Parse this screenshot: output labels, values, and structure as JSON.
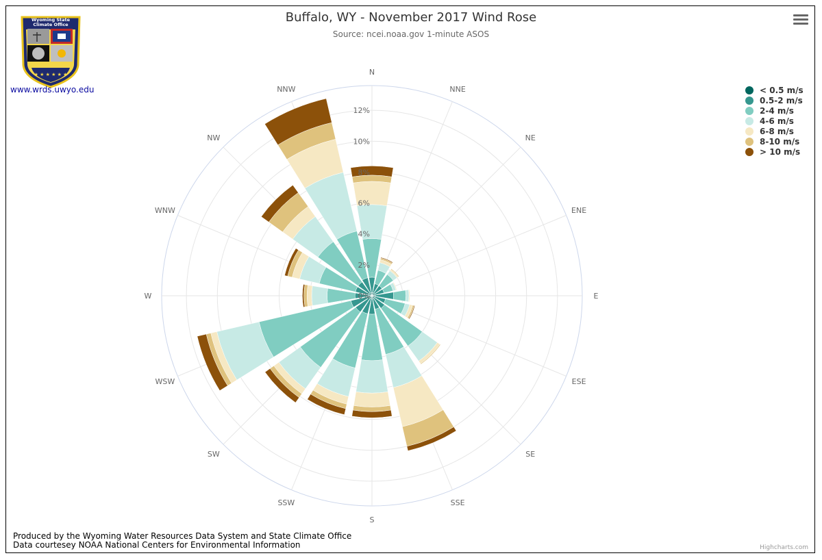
{
  "header": {
    "title": "Buffalo, WY - November 2017 Wind Rose",
    "subtitle": "Source: ncei.noaa.gov 1-minute ASOS"
  },
  "logo": {
    "text_line1": "Wyoming State",
    "text_line2": "Climate Office",
    "url_label": "www.wrds.uwyo.edu"
  },
  "footer": {
    "line1": "Produced by the Wyoming Water Resources Data System and State Climate Office",
    "line2": "Data courtesey NOAA National Centers for Environmental Information",
    "credits": "Highcharts.com"
  },
  "colors": {
    "axis": "#ccd6eb",
    "grid": "#e6e6e6",
    "label": "#666666"
  },
  "chart_data": {
    "type": "wind-rose",
    "title": "Buffalo, WY - November 2017 Wind Rose",
    "subtitle": "Source: ncei.noaa.gov 1-minute ASOS",
    "directions": [
      "N",
      "NNE",
      "NE",
      "ENE",
      "E",
      "ESE",
      "SE",
      "SSE",
      "S",
      "SSW",
      "SW",
      "WSW",
      "W",
      "WNW",
      "NW",
      "NNW"
    ],
    "radial_ticks": [
      "0%",
      "2%",
      "4%",
      "6%",
      "8%",
      "10%",
      "12%"
    ],
    "radial_max": 13.6,
    "stacking": "normal",
    "legend_position": "right",
    "series": [
      {
        "name": "< 0.5 m/s",
        "color": "#01665e",
        "values": [
          0.2,
          0.2,
          0.2,
          0.2,
          0.2,
          0.2,
          0.2,
          0.2,
          0.2,
          0.2,
          0.2,
          0.2,
          0.2,
          0.2,
          0.2,
          0.2
        ]
      },
      {
        "name": "0.5-2 m/s",
        "color": "#35978f",
        "values": [
          1.0,
          0.6,
          0.6,
          0.6,
          1.2,
          0.7,
          0.8,
          0.7,
          1.0,
          1.0,
          1.1,
          1.2,
          0.9,
          0.9,
          0.9,
          1.0
        ]
      },
      {
        "name": "2-4 m/s",
        "color": "#80cdc1",
        "values": [
          2.5,
          0.9,
          0.9,
          0.6,
          0.8,
          1.3,
          3.0,
          3.0,
          3.0,
          3.6,
          4.4,
          6.1,
          1.8,
          2.4,
          3.2,
          3.1
        ]
      },
      {
        "name": "4-6 m/s",
        "color": "#c7eae5",
        "values": [
          2.2,
          0.5,
          0.3,
          0.2,
          0.2,
          0.3,
          1.2,
          2.2,
          2.1,
          1.9,
          1.7,
          2.8,
          1.0,
          1.3,
          2.0,
          3.9
        ]
      },
      {
        "name": "6-8 m/s",
        "color": "#f6e8c3",
        "values": [
          1.5,
          0.2,
          0.1,
          0.05,
          0.05,
          0.2,
          0.2,
          2.6,
          0.9,
          0.5,
          0.4,
          0.4,
          0.3,
          0.5,
          0.8,
          2.2
        ]
      },
      {
        "name": "8-10 m/s",
        "color": "#dfc27d",
        "values": [
          0.4,
          0.1,
          0.05,
          0.0,
          0.0,
          0.1,
          0.05,
          1.3,
          0.3,
          0.3,
          0.3,
          0.3,
          0.2,
          0.3,
          1.1,
          1.1
        ]
      },
      {
        "name": "> 10 m/s",
        "color": "#8c510a",
        "values": [
          0.6,
          0.05,
          0.0,
          0.0,
          0.0,
          0.05,
          0.0,
          0.3,
          0.4,
          0.4,
          0.4,
          0.6,
          0.1,
          0.2,
          0.6,
          1.6
        ]
      }
    ]
  }
}
